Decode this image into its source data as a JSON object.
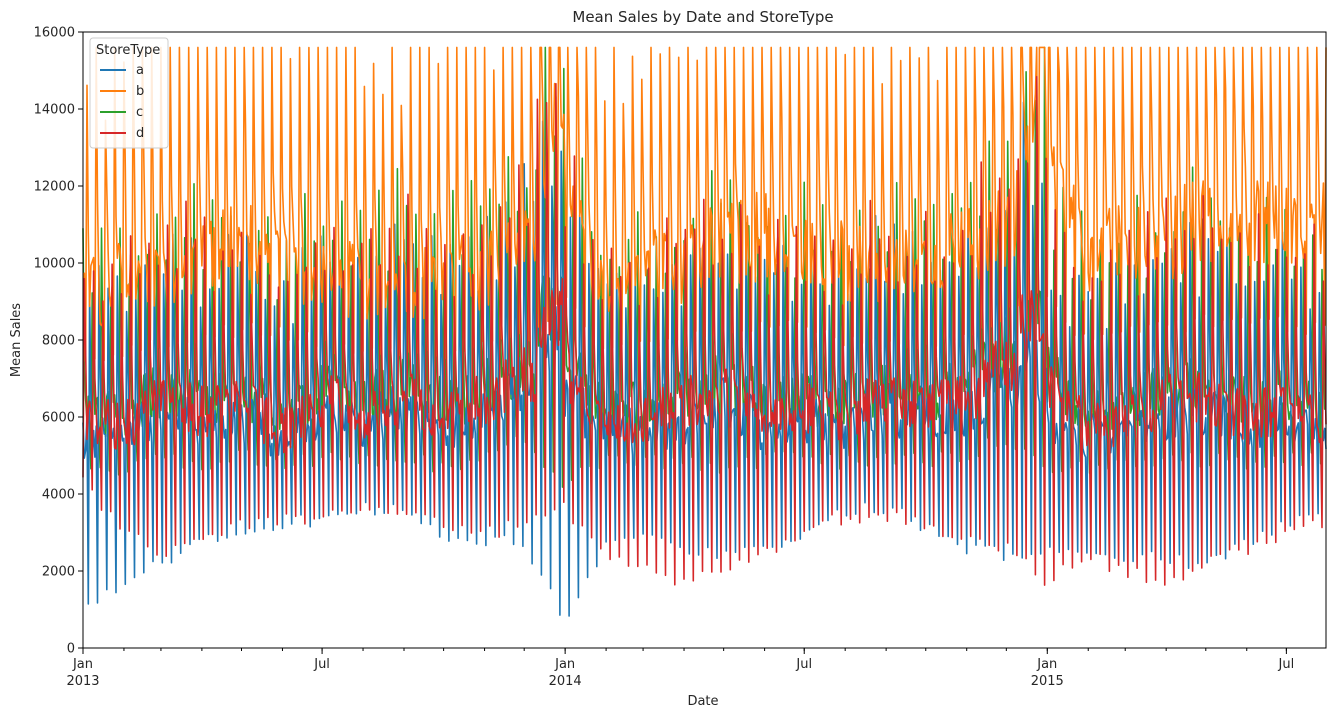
{
  "chart_data": {
    "type": "line",
    "title": "Mean Sales by Date and StoreType",
    "xlabel": "Date",
    "ylabel": "Mean Sales",
    "x_range": [
      "2013-01-01",
      "2015-07-31"
    ],
    "ylim": [
      0,
      16000
    ],
    "y_ticks": [
      0,
      2000,
      4000,
      6000,
      8000,
      10000,
      12000,
      14000,
      16000
    ],
    "x_ticks": [
      {
        "date": "2013-01-01",
        "label": "Jan",
        "sublabel": "2013"
      },
      {
        "date": "2013-07-01",
        "label": "Jul",
        "sublabel": ""
      },
      {
        "date": "2014-01-01",
        "label": "Jan",
        "sublabel": "2014"
      },
      {
        "date": "2014-07-01",
        "label": "Jul",
        "sublabel": ""
      },
      {
        "date": "2015-01-01",
        "label": "Jan",
        "sublabel": "2015"
      },
      {
        "date": "2015-07-01",
        "label": "Jul",
        "sublabel": ""
      }
    ],
    "grid": false,
    "legend": {
      "title": "StoreType",
      "placement": "top-left"
    },
    "series_note": "daily means; approximate weekly-cycle values read from the plot",
    "series": [
      {
        "name": "a",
        "color": "#1f77b4",
        "base": [
          5600,
          5500,
          6200,
          5800,
          6000,
          5400,
          6200,
          5900,
          6300,
          5800,
          6200,
          7000,
          6800,
          5600,
          5700,
          6000,
          6400,
          5800,
          6000,
          5700,
          6300,
          6000,
          6200,
          7200,
          5900,
          5500,
          5700,
          6100,
          6200,
          5800,
          6000,
          5600
        ],
        "low": [
          1100,
          1600,
          2300,
          2800,
          3000,
          3200,
          3400,
          3600,
          3600,
          3000,
          2700,
          2800,
          700,
          2600,
          3000,
          2600,
          2400,
          2600,
          3000,
          3600,
          3600,
          3200,
          2600,
          2400,
          2500,
          2400,
          2400,
          2300,
          2200,
          2800,
          3200,
          3400
        ]
      },
      {
        "name": "b",
        "color": "#ff7f0e",
        "base": [
          9200,
          9600,
          10000,
          10400,
          10500,
          10300,
          10000,
          9600,
          9600,
          9800,
          10000,
          10400,
          12000,
          9600,
          9800,
          10200,
          10700,
          10800,
          10600,
          10200,
          9800,
          10000,
          10400,
          11000,
          13000,
          10400,
          10600,
          10800,
          11200,
          11400,
          11000,
          11000
        ],
        "low": [
          7400,
          7600,
          7900,
          8100,
          8300,
          8200,
          7900,
          7600,
          7600,
          7700,
          7800,
          8000,
          9000,
          7700,
          7800,
          8000,
          8300,
          8400,
          8300,
          8000,
          7800,
          7900,
          8100,
          8600,
          9200,
          8000,
          8200,
          8300,
          8500,
          8600,
          8400,
          8300
        ]
      },
      {
        "name": "c",
        "color": "#2ca02c",
        "base": [
          6200,
          6100,
          6800,
          6500,
          6700,
          6000,
          6800,
          6500,
          6900,
          6400,
          6800,
          7500,
          7600,
          6200,
          6300,
          6700,
          7000,
          6500,
          6600,
          6400,
          6900,
          6600,
          6800,
          7800,
          7200,
          6100,
          6300,
          6800,
          6900,
          6400,
          6600,
          6200
        ],
        "low": [
          4800,
          4600,
          4900,
          4800,
          5000,
          4700,
          5000,
          4800,
          5000,
          4700,
          5000,
          5400,
          4300,
          4800,
          4900,
          4800,
          4700,
          4900,
          5000,
          4800,
          5000,
          4900,
          5000,
          5500,
          4700,
          4700,
          4800,
          4900,
          4900,
          4800,
          5000,
          4800
        ]
      },
      {
        "name": "d",
        "color": "#d62728",
        "base": [
          6000,
          5800,
          6500,
          6200,
          6400,
          5700,
          6500,
          6200,
          6600,
          6100,
          6500,
          7200,
          7400,
          5900,
          6000,
          6400,
          6700,
          6200,
          6300,
          6100,
          6600,
          6300,
          6500,
          7500,
          7000,
          5800,
          6000,
          6500,
          6600,
          6100,
          6300,
          5900
        ],
        "low": [
          4300,
          3000,
          2400,
          3000,
          3200,
          3400,
          3400,
          3600,
          3600,
          3200,
          3000,
          3200,
          3600,
          2300,
          2000,
          1700,
          2200,
          2400,
          3000,
          3400,
          3400,
          3200,
          2800,
          2600,
          1800,
          2400,
          2000,
          1600,
          2200,
          2600,
          3000,
          3200
        ]
      }
    ]
  }
}
